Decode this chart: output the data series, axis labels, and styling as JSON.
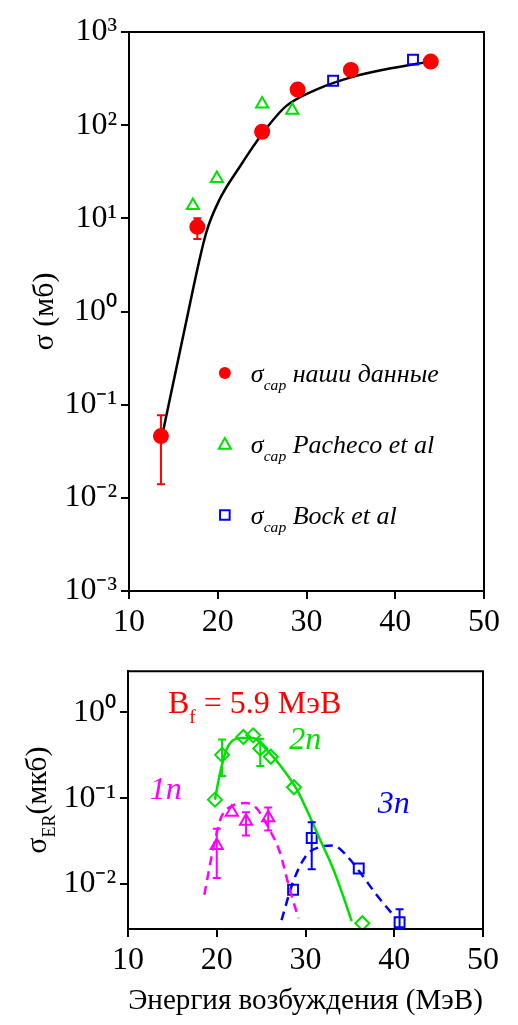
{
  "chart_data": [
    {
      "type": "scatter",
      "ylabel": "σ (мб)",
      "xlim": [
        10,
        50
      ],
      "xticks": [
        10,
        20,
        30,
        40,
        50
      ],
      "ylim": [
        0.001,
        1000
      ],
      "yticks": [
        {
          "value": 0.001,
          "label": "10⁻³"
        },
        {
          "value": 0.01,
          "label": "10⁻²"
        },
        {
          "value": 0.1,
          "label": "10⁻¹"
        },
        {
          "value": 1,
          "label": "10⁰"
        },
        {
          "value": 10,
          "label": "10¹"
        },
        {
          "value": 100,
          "label": "10²"
        },
        {
          "value": 1000,
          "label": "10³"
        }
      ],
      "log": "y",
      "grid": false,
      "legend": "right",
      "series": [
        {
          "name": "σ$_{cap}$ наши данные",
          "color": "#ff0000",
          "marker": "circle",
          "x": [
            13.6,
            17.7,
            25.0,
            29.0,
            35.0,
            44.0
          ],
          "values": [
            0.046,
            8.1,
            85,
            241,
            392,
            481
          ],
          "errors": [
            [
              0.014,
              0.077
            ],
            [
              6.0,
              10
            ],
            null,
            null,
            null,
            null
          ]
        },
        {
          "name": "σ$_{cap}$ Pacheco et al",
          "color": "#00e000",
          "marker": "triangle",
          "x": [
            17.2,
            19.9,
            25.0,
            28.4
          ],
          "values": [
            13.7,
            26.8,
            169,
            145
          ]
        },
        {
          "name": "σ$_{cap}$ Bock et al",
          "color": "#0000ff",
          "marker": "square",
          "x": [
            33.0,
            42.0
          ],
          "values": [
            300,
            505
          ]
        },
        {
          "type": "line",
          "color": "#000000",
          "marker": "none",
          "line_style": "solid",
          "x": [
            13.8,
            16.3,
            18.7,
            20.2,
            22.5,
            25.1,
            27.7,
            31.1,
            35.2,
            39.7,
            43.9
          ],
          "values": [
            0.0495,
            0.67,
            7.0,
            15.9,
            36,
            83,
            160,
            241,
            330,
            411,
            481
          ]
        }
      ]
    },
    {
      "type": "scatter",
      "xlabel": "Энергия возбуждения (МэВ)",
      "ylabel": "σ$_{ER}$(мкб)",
      "annotations": [
        "B$_{f}$ = 5.9 МэВ"
      ],
      "xlim": [
        10,
        50
      ],
      "xticks": [
        10,
        20,
        30,
        40,
        50
      ],
      "ylim": [
        0.003,
        3
      ],
      "yticks": [
        {
          "value": 0.01,
          "label": "10⁻²"
        },
        {
          "value": 0.1,
          "label": "10⁻¹"
        },
        {
          "value": 1,
          "label": "10⁰"
        }
      ],
      "log": "y",
      "grid": false,
      "series": [
        {
          "name": "1n",
          "color": "#ff00ff",
          "marker": "triangle",
          "x": [
            20.0,
            21.7,
            23.3,
            25.8
          ],
          "values": [
            0.0282,
            0.0684,
            0.0538,
            0.0593
          ],
          "errors": [
            [
              0.0118,
              0.0439
            ],
            null,
            [
              0.0367,
              0.0684
            ],
            [
              0.042,
              0.078
            ]
          ]
        },
        {
          "type": "line",
          "color": "#ff00ff",
          "marker": "none",
          "line_style": "dashed",
          "x": [
            18.6,
            19.6,
            20.5,
            21.8,
            23.3,
            24.4,
            25.9,
            27.1,
            28.2,
            29.2
          ],
          "values": [
            0.0075,
            0.0258,
            0.0598,
            0.0816,
            0.0876,
            0.078,
            0.0439,
            0.0236,
            0.0089,
            0.004
          ]
        },
        {
          "name": "2n",
          "color": "#00e000",
          "marker": "diamond",
          "x": [
            19.8,
            20.6,
            23.0,
            24.1,
            24.9,
            26.1,
            28.7,
            36.4
          ],
          "values": [
            0.096,
            0.319,
            0.515,
            0.538,
            0.378,
            0.303,
            0.134,
            0.0035
          ],
          "errors": [
            null,
            [
              0.181,
              0.48
            ],
            null,
            null,
            [
              0.236,
              0.49
            ],
            null,
            null,
            null
          ]
        },
        {
          "type": "line",
          "color": "#00e000",
          "marker": "none",
          "line_style": "solid",
          "x": [
            19.8,
            20.3,
            21.1,
            22.6,
            24.1,
            25.6,
            27.5,
            29.0,
            30.1,
            31.6,
            33.1,
            34.2,
            35.2
          ],
          "values": [
            0.096,
            0.181,
            0.367,
            0.5,
            0.5,
            0.367,
            0.216,
            0.127,
            0.0746,
            0.0336,
            0.0152,
            0.0075,
            0.0037
          ]
        },
        {
          "name": "3n",
          "color": "#0000ff",
          "marker": "square",
          "x": [
            28.6,
            30.7,
            36.0,
            40.6
          ],
          "values": [
            0.0086,
            0.0343,
            0.0152,
            0.0036
          ],
          "errors": [
            null,
            [
              0.0149,
              0.0524
            ],
            null,
            [
              0.003,
              0.0051
            ]
          ]
        },
        {
          "type": "line",
          "color": "#0000ff",
          "marker": "none",
          "line_style": "dashed",
          "x": [
            27.3,
            28.6,
            30.1,
            31.6,
            33.1,
            34.6,
            36.1,
            38.0,
            40.2
          ],
          "values": [
            0.0038,
            0.0106,
            0.0216,
            0.027,
            0.0282,
            0.0216,
            0.0139,
            0.0075,
            0.004
          ]
        }
      ]
    }
  ]
}
